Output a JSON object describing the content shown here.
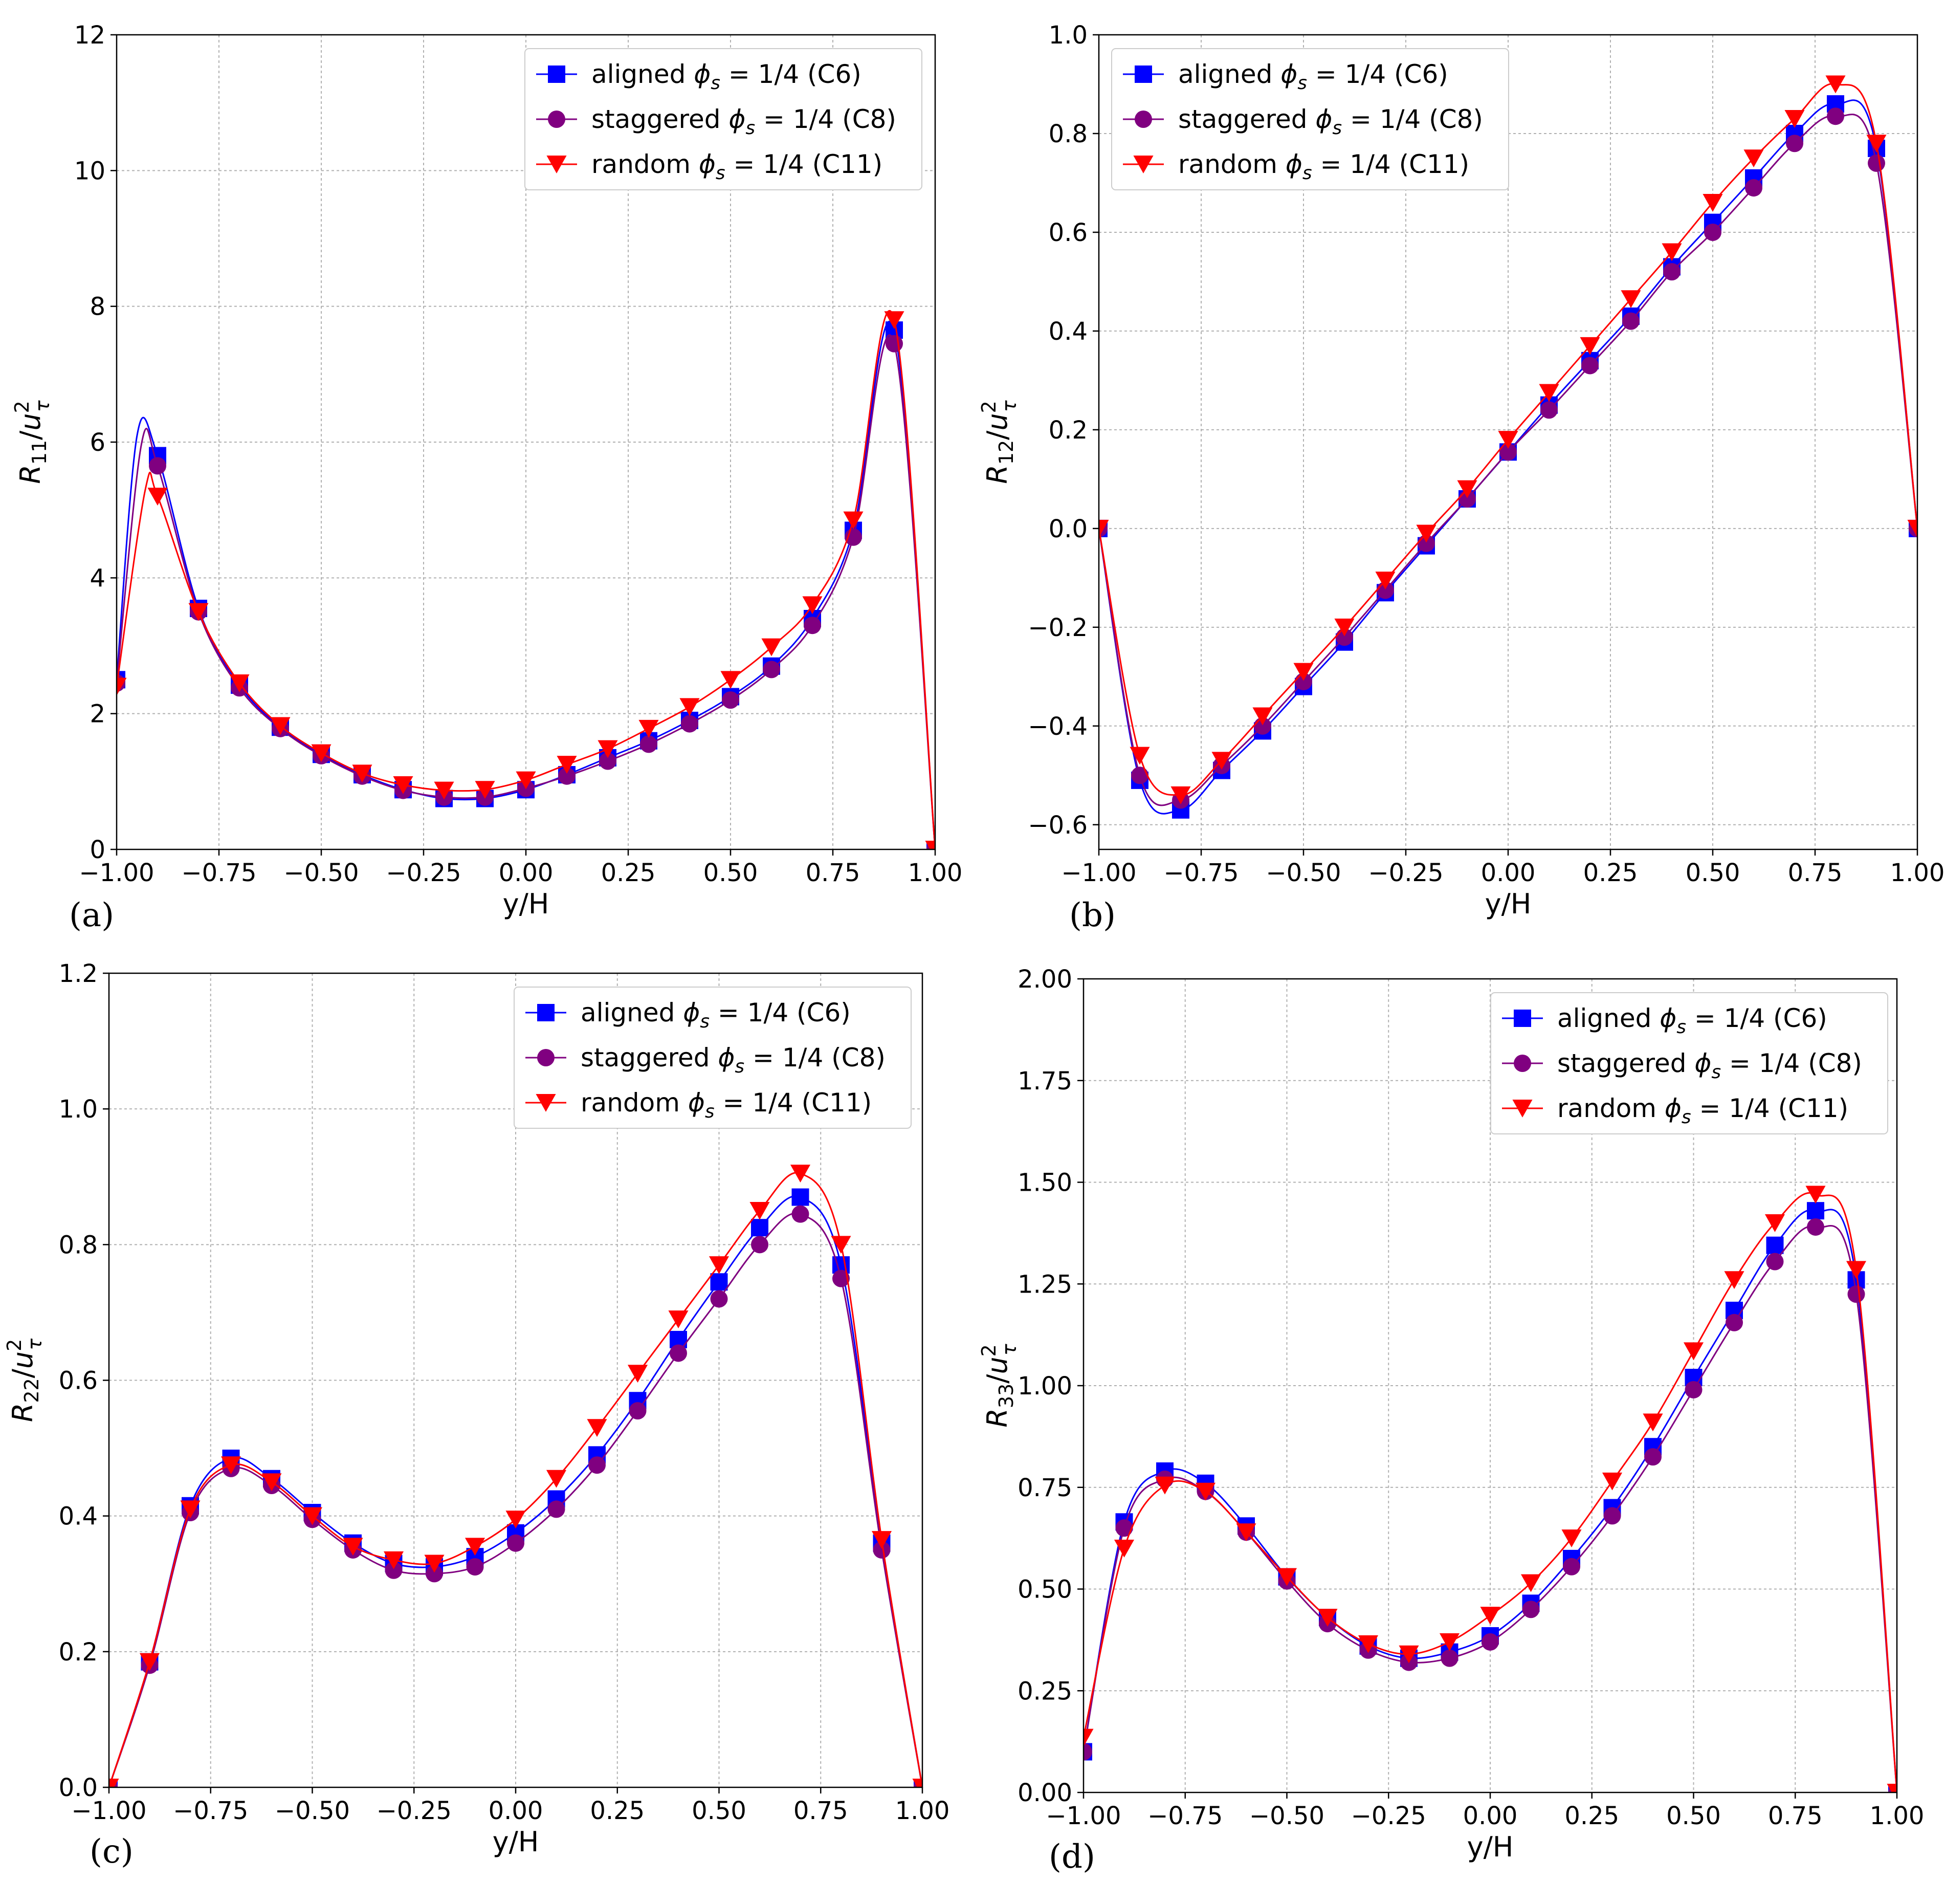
{
  "chart_data": [
    {
      "type": "line",
      "panel": "(a)",
      "xlabel": "y/H",
      "ylabel": "R11/u_tau^2",
      "ylabel_main": "R",
      "ylabel_sub": "11",
      "ylabel_u": "u",
      "ylabel_usup": "2",
      "ylabel_usub": "τ",
      "xlim": [
        -1.0,
        1.0
      ],
      "ylim": [
        0,
        12
      ],
      "xticks": [
        "−1.00",
        "−0.75",
        "−0.50",
        "−0.25",
        "0.00",
        "0.25",
        "0.50",
        "0.75",
        "1.00"
      ],
      "yticks": [
        "0",
        "2",
        "4",
        "6",
        "8",
        "10",
        "12"
      ],
      "legend_position": "top-right",
      "x": [
        -1.0,
        -0.9,
        -0.8,
        -0.7,
        -0.6,
        -0.5,
        -0.4,
        -0.3,
        -0.2,
        -0.1,
        0.0,
        0.1,
        0.2,
        0.3,
        0.4,
        0.5,
        0.6,
        0.7,
        0.8,
        0.9,
        1.0
      ],
      "series": [
        {
          "name": "aligned",
          "legend_pre": "aligned ",
          "legend_post": " = 1/4 (C6)",
          "color": "#0000ff",
          "marker": "square",
          "values": [
            2.5,
            5.8,
            3.55,
            2.42,
            1.8,
            1.4,
            1.1,
            0.88,
            0.75,
            0.75,
            0.88,
            1.1,
            1.35,
            1.6,
            1.9,
            2.25,
            2.7,
            3.4,
            4.7,
            7.65,
            0.0
          ],
          "peak_x": -0.95,
          "peak_y": 6.1
        },
        {
          "name": "staggered",
          "legend_pre": "staggered ",
          "legend_post": " = 1/4 (C8)",
          "color": "#800080",
          "marker": "circle",
          "values": [
            2.45,
            5.65,
            3.5,
            2.38,
            1.78,
            1.38,
            1.08,
            0.87,
            0.77,
            0.77,
            0.9,
            1.08,
            1.3,
            1.55,
            1.85,
            2.2,
            2.65,
            3.3,
            4.6,
            7.45,
            0.0
          ],
          "peak_x": -0.94,
          "peak_y": 5.95
        },
        {
          "name": "random",
          "legend_pre": "random ",
          "legend_post": " = 1/4 (C11)",
          "color": "#ff0000",
          "marker": "triangle",
          "values": [
            2.4,
            5.2,
            3.5,
            2.45,
            1.82,
            1.42,
            1.12,
            0.95,
            0.87,
            0.88,
            1.02,
            1.25,
            1.48,
            1.78,
            2.1,
            2.5,
            2.98,
            3.6,
            4.85,
            7.8,
            0.0
          ],
          "peak_x": -0.93,
          "peak_y": 5.3
        }
      ]
    },
    {
      "type": "line",
      "panel": "(b)",
      "xlabel": "y/H",
      "ylabel": "R12/u_tau^2",
      "ylabel_main": "R",
      "ylabel_sub": "12",
      "ylabel_u": "u",
      "ylabel_usup": "2",
      "ylabel_usub": "τ",
      "xlim": [
        -1.0,
        1.0
      ],
      "ylim": [
        -0.65,
        1.0
      ],
      "xticks": [
        "−1.00",
        "−0.75",
        "−0.50",
        "−0.25",
        "0.00",
        "0.25",
        "0.50",
        "0.75",
        "1.00"
      ],
      "yticks": [
        "−0.6",
        "−0.4",
        "−0.2",
        "0.0",
        "0.2",
        "0.4",
        "0.6",
        "0.8",
        "1.0"
      ],
      "legend_position": "top-left",
      "x": [
        -1.0,
        -0.9,
        -0.8,
        -0.7,
        -0.6,
        -0.5,
        -0.4,
        -0.3,
        -0.2,
        -0.1,
        0.0,
        0.1,
        0.2,
        0.3,
        0.4,
        0.5,
        0.6,
        0.7,
        0.8,
        0.9,
        1.0
      ],
      "series": [
        {
          "name": "aligned",
          "legend_pre": "aligned ",
          "legend_post": " = 1/4 (C6)",
          "color": "#0000ff",
          "marker": "square",
          "values": [
            0.0,
            -0.51,
            -0.57,
            -0.49,
            -0.41,
            -0.32,
            -0.23,
            -0.13,
            -0.035,
            0.06,
            0.155,
            0.25,
            0.34,
            0.43,
            0.53,
            0.62,
            0.71,
            0.8,
            0.86,
            0.77,
            0.0
          ]
        },
        {
          "name": "staggered",
          "legend_pre": "staggered ",
          "legend_post": " = 1/4 (C8)",
          "color": "#800080",
          "marker": "circle",
          "values": [
            0.0,
            -0.5,
            -0.55,
            -0.48,
            -0.4,
            -0.31,
            -0.22,
            -0.125,
            -0.03,
            0.06,
            0.155,
            0.24,
            0.33,
            0.42,
            0.52,
            0.6,
            0.69,
            0.78,
            0.835,
            0.74,
            0.0
          ]
        },
        {
          "name": "random",
          "legend_pre": "random ",
          "legend_post": " = 1/4 (C11)",
          "color": "#ff0000",
          "marker": "triangle",
          "values": [
            0.0,
            -0.46,
            -0.54,
            -0.47,
            -0.38,
            -0.29,
            -0.2,
            -0.105,
            -0.01,
            0.08,
            0.18,
            0.275,
            0.37,
            0.465,
            0.56,
            0.66,
            0.75,
            0.83,
            0.9,
            0.78,
            0.0
          ]
        }
      ]
    },
    {
      "type": "line",
      "panel": "(c)",
      "xlabel": "y/H",
      "ylabel": "R22/u_tau^2",
      "ylabel_main": "R",
      "ylabel_sub": "22",
      "ylabel_u": "u",
      "ylabel_usup": "2",
      "ylabel_usub": "τ",
      "xlim": [
        -1.0,
        1.0
      ],
      "ylim": [
        0.0,
        1.2
      ],
      "xticks": [
        "−1.00",
        "−0.75",
        "−0.50",
        "−0.25",
        "0.00",
        "0.25",
        "0.50",
        "0.75",
        "1.00"
      ],
      "yticks": [
        "0.0",
        "0.2",
        "0.4",
        "0.6",
        "0.8",
        "1.0",
        "1.2"
      ],
      "legend_position": "top-right",
      "x": [
        -1.0,
        -0.9,
        -0.8,
        -0.7,
        -0.6,
        -0.5,
        -0.4,
        -0.3,
        -0.2,
        -0.1,
        0.0,
        0.1,
        0.2,
        0.3,
        0.4,
        0.5,
        0.6,
        0.7,
        0.8,
        0.9,
        1.0
      ],
      "series": [
        {
          "name": "aligned",
          "legend_pre": "aligned ",
          "legend_post": " = 1/4 (C6)",
          "color": "#0000ff",
          "marker": "square",
          "values": [
            0.0,
            0.185,
            0.415,
            0.485,
            0.455,
            0.405,
            0.36,
            0.33,
            0.325,
            0.34,
            0.375,
            0.425,
            0.49,
            0.57,
            0.66,
            0.745,
            0.825,
            0.87,
            0.77,
            0.36,
            0.0
          ]
        },
        {
          "name": "staggered",
          "legend_pre": "staggered ",
          "legend_post": " = 1/4 (C8)",
          "color": "#800080",
          "marker": "circle",
          "values": [
            0.0,
            0.18,
            0.405,
            0.47,
            0.445,
            0.395,
            0.35,
            0.32,
            0.315,
            0.325,
            0.36,
            0.41,
            0.475,
            0.555,
            0.64,
            0.72,
            0.8,
            0.845,
            0.75,
            0.35,
            0.0
          ]
        },
        {
          "name": "random",
          "legend_pre": "random ",
          "legend_post": " = 1/4 (C11)",
          "color": "#ff0000",
          "marker": "triangle",
          "values": [
            0.0,
            0.185,
            0.41,
            0.475,
            0.45,
            0.4,
            0.355,
            0.335,
            0.33,
            0.355,
            0.395,
            0.455,
            0.53,
            0.61,
            0.69,
            0.77,
            0.85,
            0.905,
            0.8,
            0.365,
            0.0
          ]
        }
      ]
    },
    {
      "type": "line",
      "panel": "(d)",
      "xlabel": "y/H",
      "ylabel": "R33/u_tau^2",
      "ylabel_main": "R",
      "ylabel_sub": "33",
      "ylabel_u": "u",
      "ylabel_usup": "2",
      "ylabel_usub": "τ",
      "xlim": [
        -1.0,
        1.0
      ],
      "ylim": [
        0.0,
        2.0
      ],
      "xticks": [
        "−1.00",
        "−0.75",
        "−0.50",
        "−0.25",
        "0.00",
        "0.25",
        "0.50",
        "0.75",
        "1.00"
      ],
      "yticks": [
        "0.00",
        "0.25",
        "0.50",
        "0.75",
        "1.00",
        "1.25",
        "1.50",
        "1.75",
        "2.00"
      ],
      "legend_position": "top-right",
      "x": [
        -1.0,
        -0.9,
        -0.8,
        -0.7,
        -0.6,
        -0.5,
        -0.4,
        -0.3,
        -0.2,
        -0.1,
        0.0,
        0.1,
        0.2,
        0.3,
        0.4,
        0.5,
        0.6,
        0.7,
        0.8,
        0.9,
        1.0
      ],
      "series": [
        {
          "name": "aligned",
          "legend_pre": "aligned ",
          "legend_post": " = 1/4 (C6)",
          "color": "#0000ff",
          "marker": "square",
          "values": [
            0.1,
            0.665,
            0.79,
            0.76,
            0.655,
            0.53,
            0.43,
            0.36,
            0.33,
            0.345,
            0.385,
            0.465,
            0.575,
            0.7,
            0.85,
            1.02,
            1.185,
            1.345,
            1.43,
            1.26,
            0.0
          ]
        },
        {
          "name": "staggered",
          "legend_pre": "staggered ",
          "legend_post": " = 1/4 (C8)",
          "color": "#800080",
          "marker": "circle",
          "values": [
            0.1,
            0.65,
            0.77,
            0.74,
            0.64,
            0.52,
            0.415,
            0.35,
            0.32,
            0.33,
            0.37,
            0.45,
            0.555,
            0.68,
            0.825,
            0.99,
            1.155,
            1.305,
            1.39,
            1.225,
            0.0
          ]
        },
        {
          "name": "random",
          "legend_pre": "random ",
          "legend_post": " = 1/4 (C11)",
          "color": "#ff0000",
          "marker": "triangle",
          "values": [
            0.135,
            0.6,
            0.755,
            0.74,
            0.64,
            0.53,
            0.43,
            0.365,
            0.34,
            0.37,
            0.435,
            0.515,
            0.625,
            0.765,
            0.91,
            1.085,
            1.26,
            1.4,
            1.47,
            1.285,
            0.0
          ]
        }
      ]
    }
  ]
}
